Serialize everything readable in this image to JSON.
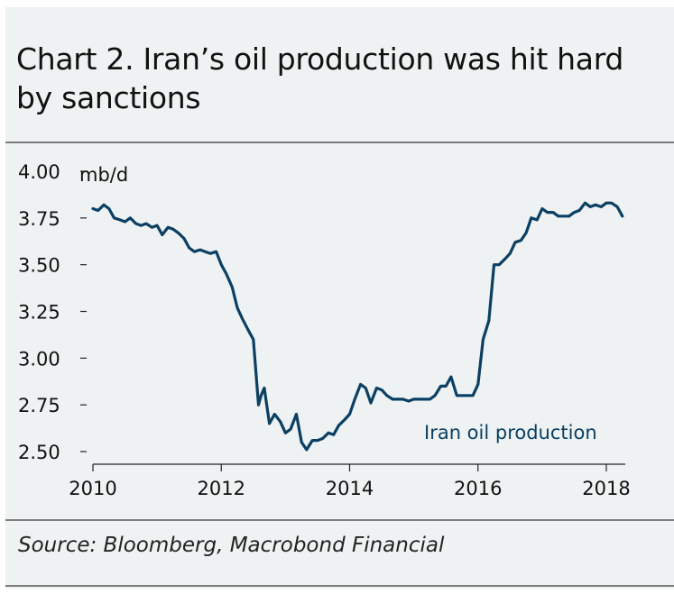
{
  "title": "Chart 2. Iran’s oil production was hit hard by sanctions",
  "source": "Source: Bloomberg, Macrobond Financial",
  "colors": {
    "line": "#0b3f63",
    "label": "#0b3f63",
    "text": "#111111",
    "panel": "#eef2f2",
    "rule": "#7d7d7d"
  },
  "chart_data": {
    "type": "line",
    "title": "Chart 2. Iran’s oil production was hit hard by sanctions",
    "ylabel": "mb/d",
    "xlabel": "",
    "ylim": [
      2.5,
      4.0
    ],
    "xlim": [
      2010,
      2018.5
    ],
    "yticks": [
      "4.00",
      "3.75",
      "3.50",
      "3.25",
      "3.00",
      "2.75",
      "2.50"
    ],
    "xticks": [
      "2010",
      "2012",
      "2014",
      "2016",
      "2018"
    ],
    "grid": false,
    "series": [
      {
        "name": "Iran oil production",
        "x": [
          2010.0,
          2010.08,
          2010.17,
          2010.25,
          2010.33,
          2010.42,
          2010.5,
          2010.58,
          2010.67,
          2010.75,
          2010.83,
          2010.92,
          2011.0,
          2011.08,
          2011.17,
          2011.25,
          2011.33,
          2011.42,
          2011.5,
          2011.58,
          2011.67,
          2011.75,
          2011.83,
          2011.92,
          2012.0,
          2012.08,
          2012.17,
          2012.25,
          2012.33,
          2012.42,
          2012.5,
          2012.58,
          2012.62,
          2012.67,
          2012.75,
          2012.83,
          2012.92,
          2013.0,
          2013.08,
          2013.17,
          2013.25,
          2013.33,
          2013.42,
          2013.5,
          2013.58,
          2013.67,
          2013.75,
          2013.83,
          2013.92,
          2014.0,
          2014.08,
          2014.17,
          2014.25,
          2014.33,
          2014.42,
          2014.5,
          2014.58,
          2014.67,
          2014.75,
          2014.83,
          2014.92,
          2015.0,
          2015.08,
          2015.17,
          2015.25,
          2015.33,
          2015.42,
          2015.5,
          2015.58,
          2015.67,
          2015.75,
          2015.83,
          2015.92,
          2016.0,
          2016.08,
          2016.17,
          2016.25,
          2016.33,
          2016.42,
          2016.5,
          2016.58,
          2016.67,
          2016.75,
          2016.83,
          2016.92,
          2017.0,
          2017.08,
          2017.17,
          2017.25,
          2017.33,
          2017.42,
          2017.5,
          2017.58,
          2017.67,
          2017.75,
          2017.83,
          2017.92,
          2018.0,
          2018.08,
          2018.17,
          2018.25
        ],
        "values": [
          3.8,
          3.79,
          3.82,
          3.8,
          3.75,
          3.74,
          3.73,
          3.75,
          3.72,
          3.71,
          3.72,
          3.7,
          3.71,
          3.66,
          3.7,
          3.69,
          3.67,
          3.64,
          3.59,
          3.57,
          3.58,
          3.57,
          3.56,
          3.57,
          3.5,
          3.45,
          3.38,
          3.27,
          3.21,
          3.15,
          3.1,
          2.75,
          2.8,
          2.84,
          2.65,
          2.7,
          2.66,
          2.6,
          2.62,
          2.7,
          2.55,
          2.51,
          2.56,
          2.56,
          2.57,
          2.6,
          2.59,
          2.64,
          2.67,
          2.7,
          2.78,
          2.86,
          2.84,
          2.76,
          2.84,
          2.83,
          2.8,
          2.78,
          2.78,
          2.78,
          2.77,
          2.78,
          2.78,
          2.78,
          2.78,
          2.8,
          2.85,
          2.85,
          2.9,
          2.8,
          2.8,
          2.8,
          2.8,
          2.86,
          3.1,
          3.2,
          3.5,
          3.5,
          3.53,
          3.56,
          3.62,
          3.63,
          3.67,
          3.75,
          3.74,
          3.8,
          3.78,
          3.78,
          3.76,
          3.76,
          3.76,
          3.78,
          3.79,
          3.83,
          3.81,
          3.82,
          3.81,
          3.83,
          3.83,
          3.81,
          3.76
        ]
      }
    ]
  }
}
